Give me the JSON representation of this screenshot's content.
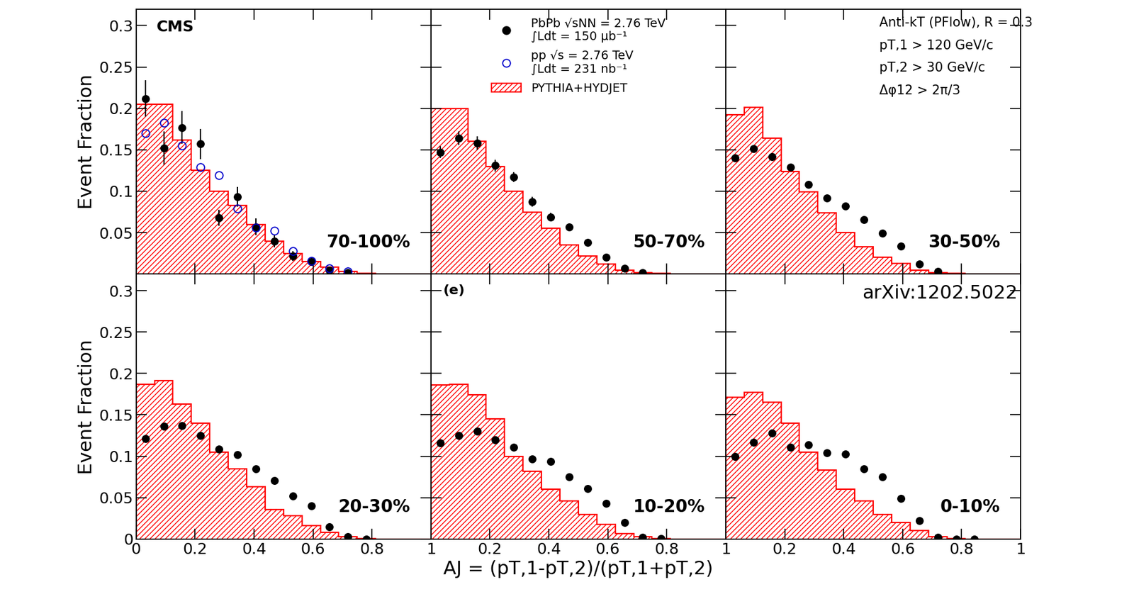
{
  "chart_data": [
    {
      "type": "histogram",
      "ylabel": "Event Fraction",
      "xlim": [
        0,
        1
      ],
      "ylim": [
        0,
        0.32
      ],
      "xticks": [
        0,
        0.2,
        0.4,
        0.6,
        0.8,
        1
      ],
      "yticks": [
        0.05,
        0.1,
        0.15,
        0.2,
        0.25,
        0.3
      ],
      "tick_labels": "y",
      "annotations": [
        "CMS",
        "70-100%"
      ],
      "series": [
        {
          "name": "PYTHIA+HYDJET",
          "type": "histogram",
          "color": "#ff0000",
          "bins": [
            0,
            0.0625,
            0.125,
            0.1875,
            0.25,
            0.3125,
            0.375,
            0.4375,
            0.5,
            0.5625,
            0.625,
            0.6875,
            0.75,
            0.8125,
            0.875,
            0.9375,
            1
          ],
          "values": [
            0.205,
            0.205,
            0.162,
            0.125,
            0.1,
            0.083,
            0.06,
            0.04,
            0.025,
            0.015,
            0.008,
            0.003,
            0.001,
            0,
            0,
            0
          ]
        },
        {
          "name": "PbPb √sNN = 2.76 TeV\n∫Ldt = 150 μb⁻¹",
          "type": "scatter",
          "color": "#000000",
          "marker": "filled circle",
          "x": [
            0.03125,
            0.09375,
            0.15625,
            0.21875,
            0.28125,
            0.34375,
            0.40625,
            0.46875,
            0.53125,
            0.59375,
            0.65625,
            0.71875
          ],
          "values": [
            0.212,
            0.152,
            0.177,
            0.157,
            0.068,
            0.093,
            0.057,
            0.04,
            0.022,
            0.015,
            0.005,
            0.002
          ],
          "errors": [
            0.022,
            0.02,
            0.02,
            0.018,
            0.01,
            0.012,
            0.01,
            0.008,
            0.006,
            0.005,
            0.003,
            0.002
          ]
        },
        {
          "name": "pp √s = 2.76 TeV\n∫Ldt = 231 nb⁻¹",
          "type": "scatter",
          "color": "#0000cc",
          "marker": "open circle",
          "x": [
            0.03125,
            0.09375,
            0.15625,
            0.21875,
            0.28125,
            0.34375,
            0.40625,
            0.46875,
            0.53125,
            0.59375,
            0.65625,
            0.71875
          ],
          "values": [
            0.17,
            0.183,
            0.155,
            0.129,
            0.119,
            0.079,
            0.056,
            0.052,
            0.028,
            0.016,
            0.007,
            0.003
          ]
        }
      ]
    },
    {
      "type": "histogram",
      "xlim": [
        0,
        1
      ],
      "ylim": [
        0,
        0.32
      ],
      "xticks": [
        0,
        0.2,
        0.4,
        0.6,
        0.8,
        1
      ],
      "yticks": [
        0.05,
        0.1,
        0.15,
        0.2,
        0.25,
        0.3
      ],
      "tick_labels": false,
      "legend": "upper center",
      "annotations": [
        "50-70%"
      ],
      "series": [
        {
          "name": "PYTHIA+HYDJET",
          "type": "histogram",
          "color": "#ff0000",
          "bins": [
            0,
            0.0625,
            0.125,
            0.1875,
            0.25,
            0.3125,
            0.375,
            0.4375,
            0.5,
            0.5625,
            0.625,
            0.6875,
            0.75,
            0.8125,
            0.875,
            0.9375,
            1
          ],
          "values": [
            0.2,
            0.2,
            0.16,
            0.13,
            0.1,
            0.075,
            0.055,
            0.035,
            0.022,
            0.012,
            0.005,
            0.002,
            0.001,
            0,
            0,
            0
          ]
        },
        {
          "name": "PbPb √sNN = 2.76 TeV\n∫Ldt = 150 μb⁻¹",
          "type": "scatter",
          "color": "#000000",
          "marker": "filled circle",
          "x": [
            0.03125,
            0.09375,
            0.15625,
            0.21875,
            0.28125,
            0.34375,
            0.40625,
            0.46875,
            0.53125,
            0.59375,
            0.65625,
            0.71875
          ],
          "values": [
            0.147,
            0.164,
            0.158,
            0.131,
            0.117,
            0.087,
            0.069,
            0.057,
            0.038,
            0.02,
            0.007,
            0.002
          ],
          "errors": [
            0.007,
            0.008,
            0.008,
            0.007,
            0.006,
            0.006,
            0.005,
            0.004,
            0.003,
            0.003,
            0.002,
            0.001
          ]
        }
      ]
    },
    {
      "type": "histogram",
      "xlim": [
        0,
        1
      ],
      "ylim": [
        0,
        0.32
      ],
      "xticks": [
        0,
        0.2,
        0.4,
        0.6,
        0.8,
        1
      ],
      "yticks": [
        0.05,
        0.1,
        0.15,
        0.2,
        0.25,
        0.3
      ],
      "tick_labels": false,
      "annotations": [
        "Anti-kT (PFlow), R = 0.3",
        "pT,1 > 120 GeV/c",
        "pT,2 > 30 GeV/c",
        "Δφ12 > 2π/3",
        "30-50%"
      ],
      "series": [
        {
          "name": "PYTHIA+HYDJET",
          "type": "histogram",
          "color": "#ff0000",
          "bins": [
            0,
            0.0625,
            0.125,
            0.1875,
            0.25,
            0.3125,
            0.375,
            0.4375,
            0.5,
            0.5625,
            0.625,
            0.6875,
            0.75,
            0.8125,
            0.875,
            0.9375,
            1
          ],
          "values": [
            0.192,
            0.201,
            0.164,
            0.124,
            0.099,
            0.074,
            0.05,
            0.033,
            0.02,
            0.013,
            0.005,
            0.002,
            0.001,
            0,
            0,
            0
          ]
        },
        {
          "name": "PbPb √sNN = 2.76 TeV\n∫Ldt = 150 μb⁻¹",
          "type": "scatter",
          "color": "#000000",
          "marker": "filled circle",
          "x": [
            0.03125,
            0.09375,
            0.15625,
            0.21875,
            0.28125,
            0.34375,
            0.40625,
            0.46875,
            0.53125,
            0.59375,
            0.65625,
            0.71875
          ],
          "values": [
            0.14,
            0.151,
            0.142,
            0.129,
            0.108,
            0.092,
            0.082,
            0.066,
            0.049,
            0.034,
            0.012,
            0.003
          ]
        }
      ]
    },
    {
      "type": "histogram",
      "ylabel": "Event Fraction",
      "xlim": [
        0,
        1
      ],
      "ylim": [
        0,
        0.32
      ],
      "xticks": [
        0,
        0.2,
        0.4,
        0.6,
        0.8,
        1
      ],
      "yticks": [
        0,
        0.05,
        0.1,
        0.15,
        0.2,
        0.25,
        0.3
      ],
      "annotations": [
        "20-30%"
      ],
      "series": [
        {
          "name": "PYTHIA+HYDJET",
          "type": "histogram",
          "color": "#ff0000",
          "bins": [
            0,
            0.0625,
            0.125,
            0.1875,
            0.25,
            0.3125,
            0.375,
            0.4375,
            0.5,
            0.5625,
            0.625,
            0.6875,
            0.75,
            0.8125,
            0.875,
            0.9375,
            1
          ],
          "values": [
            0.187,
            0.191,
            0.163,
            0.14,
            0.105,
            0.085,
            0.063,
            0.036,
            0.028,
            0.016,
            0.008,
            0.003,
            0.001,
            0,
            0,
            0
          ]
        },
        {
          "name": "PbPb √sNN = 2.76 TeV\n∫Ldt = 150 μb⁻¹",
          "type": "scatter",
          "color": "#000000",
          "marker": "filled circle",
          "x": [
            0.03125,
            0.09375,
            0.15625,
            0.21875,
            0.28125,
            0.34375,
            0.40625,
            0.46875,
            0.53125,
            0.59375,
            0.65625,
            0.71875,
            0.78125
          ],
          "values": [
            0.121,
            0.136,
            0.137,
            0.125,
            0.109,
            0.102,
            0.085,
            0.071,
            0.052,
            0.04,
            0.015,
            0.003,
            0.0
          ]
        }
      ]
    },
    {
      "type": "histogram",
      "xlabel": "AJ = (pT,1-pT,2)/(pT,1+pT,2)",
      "xlim": [
        0,
        1
      ],
      "ylim": [
        0,
        0.32
      ],
      "xticks": [
        0.2,
        0.4,
        0.6,
        0.8,
        1
      ],
      "yticks": [
        0.05,
        0.1,
        0.15,
        0.2,
        0.25,
        0.3
      ],
      "tick_labels": "x",
      "annotations": [
        "(e)",
        "10-20%"
      ],
      "series": [
        {
          "name": "PYTHIA+HYDJET",
          "type": "histogram",
          "color": "#ff0000",
          "bins": [
            0,
            0.0625,
            0.125,
            0.1875,
            0.25,
            0.3125,
            0.375,
            0.4375,
            0.5,
            0.5625,
            0.625,
            0.6875,
            0.75,
            0.8125,
            0.875,
            0.9375,
            1
          ],
          "values": [
            0.186,
            0.187,
            0.174,
            0.145,
            0.1,
            0.082,
            0.06,
            0.046,
            0.03,
            0.018,
            0.007,
            0.003,
            0.001,
            0,
            0,
            0
          ]
        },
        {
          "name": "PbPb √sNN = 2.76 TeV\n∫Ldt = 150 μb⁻¹",
          "type": "scatter",
          "color": "#000000",
          "marker": "filled circle",
          "x": [
            0.03125,
            0.09375,
            0.15625,
            0.21875,
            0.28125,
            0.34375,
            0.40625,
            0.46875,
            0.53125,
            0.59375,
            0.65625,
            0.71875,
            0.78125
          ],
          "values": [
            0.116,
            0.125,
            0.13,
            0.12,
            0.111,
            0.097,
            0.094,
            0.075,
            0.061,
            0.043,
            0.02,
            0.002,
            0.001
          ]
        }
      ]
    },
    {
      "type": "histogram",
      "xlim": [
        0,
        1
      ],
      "ylim": [
        0,
        0.32
      ],
      "xticks": [
        0.2,
        0.4,
        0.6,
        0.8,
        1
      ],
      "yticks": [
        0.05,
        0.1,
        0.15,
        0.2,
        0.25,
        0.3
      ],
      "tick_labels": "x",
      "annotations": [
        "arXiv:1202.5022",
        "0-10%"
      ],
      "series": [
        {
          "name": "PYTHIA+HYDJET",
          "type": "histogram",
          "color": "#ff0000",
          "bins": [
            0,
            0.0625,
            0.125,
            0.1875,
            0.25,
            0.3125,
            0.375,
            0.4375,
            0.5,
            0.5625,
            0.625,
            0.6875,
            0.75,
            0.8125,
            0.875,
            0.9375,
            1
          ],
          "values": [
            0.171,
            0.177,
            0.165,
            0.14,
            0.105,
            0.083,
            0.06,
            0.046,
            0.03,
            0.02,
            0.01,
            0.003,
            0.001,
            0,
            0,
            0
          ]
        },
        {
          "name": "PbPb √sNN = 2.76 TeV\n∫Ldt = 150 μb⁻¹",
          "type": "scatter",
          "color": "#000000",
          "marker": "filled circle",
          "x": [
            0.03125,
            0.09375,
            0.15625,
            0.21875,
            0.28125,
            0.34375,
            0.40625,
            0.46875,
            0.53125,
            0.59375,
            0.65625,
            0.71875,
            0.78125,
            0.84375
          ],
          "values": [
            0.1,
            0.117,
            0.128,
            0.111,
            0.114,
            0.104,
            0.103,
            0.085,
            0.075,
            0.049,
            0.022,
            0.002,
            0.0,
            0.0
          ]
        }
      ]
    }
  ]
}
